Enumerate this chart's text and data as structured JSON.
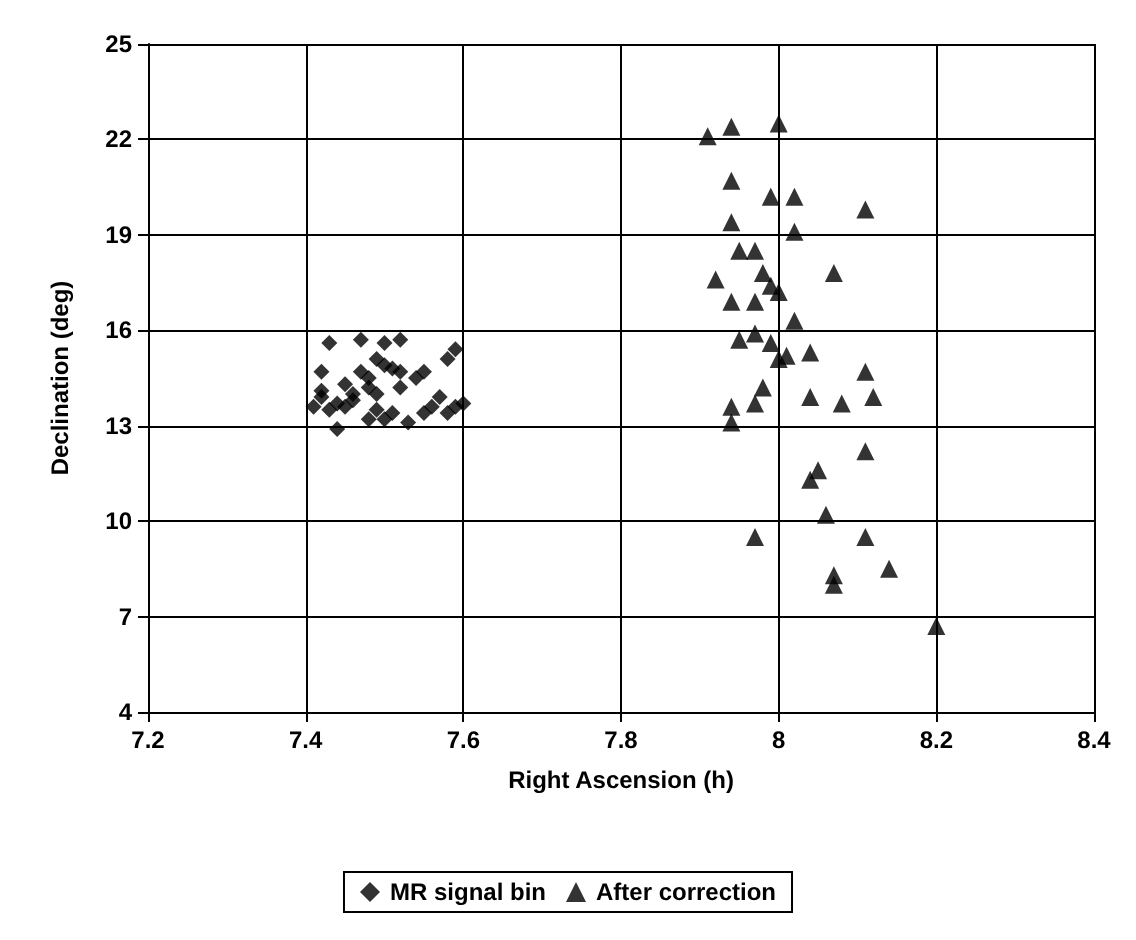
{
  "chart_data": {
    "type": "scatter",
    "xlabel": "Right Ascension (h)",
    "ylabel": "Declination (deg)",
    "xlim": [
      7.2,
      8.4
    ],
    "xticks": [
      7.2,
      7.4,
      7.6,
      7.8,
      8,
      8.2,
      8.4
    ],
    "ylim": [
      4,
      25
    ],
    "yticks": [
      4,
      7,
      10,
      13,
      16,
      19,
      22,
      25
    ],
    "grid": true,
    "legend": "bottom",
    "series": [
      {
        "name": "MR signal bin",
        "color": "#000000",
        "marker": "diamond",
        "x": [
          7.41,
          7.42,
          7.42,
          7.43,
          7.42,
          7.43,
          7.44,
          7.44,
          7.45,
          7.46,
          7.46,
          7.47,
          7.47,
          7.48,
          7.48,
          7.49,
          7.49,
          7.49,
          7.5,
          7.5,
          7.5,
          7.51,
          7.51,
          7.52,
          7.52,
          7.52,
          7.53,
          7.54,
          7.55,
          7.55,
          7.56,
          7.57,
          7.58,
          7.59,
          7.59,
          7.6,
          7.58,
          7.48,
          7.45
        ],
        "values": [
          13.6,
          14.1,
          14.7,
          15.6,
          13.9,
          13.5,
          13.7,
          12.9,
          13.6,
          14,
          13.8,
          15.7,
          14.7,
          14.2,
          14.5,
          14,
          15.1,
          13.5,
          15.6,
          13.2,
          14.9,
          14.8,
          13.4,
          14.7,
          15.7,
          14.2,
          13.1,
          14.5,
          14.7,
          13.4,
          13.6,
          13.9,
          15.1,
          15.4,
          13.6,
          13.7,
          13.4,
          13.2,
          14.3
        ]
      },
      {
        "name": "After correction",
        "color": "#000000",
        "marker": "triangle",
        "x": [
          7.91,
          7.94,
          8,
          7.94,
          7.99,
          8.02,
          8.11,
          7.94,
          8.02,
          7.92,
          7.95,
          7.97,
          7.98,
          8.07,
          7.99,
          8,
          7.94,
          7.97,
          8.02,
          7.95,
          7.97,
          7.99,
          8,
          8.01,
          8.04,
          7.94,
          7.94,
          7.97,
          7.98,
          8.04,
          8.08,
          8.11,
          8.12,
          8.05,
          8.04,
          8.11,
          8.06,
          7.97,
          8.11,
          8.07,
          8.07,
          8.14,
          8.2
        ],
        "values": [
          22.1,
          22.4,
          22.5,
          20.7,
          20.2,
          20.2,
          19.8,
          19.4,
          19.1,
          17.6,
          18.5,
          18.5,
          17.8,
          17.8,
          17.4,
          17.2,
          16.9,
          16.9,
          16.3,
          15.7,
          15.9,
          15.6,
          15.1,
          15.2,
          15.3,
          13.6,
          13.1,
          13.7,
          14.2,
          13.9,
          13.7,
          14.7,
          13.9,
          11.6,
          11.3,
          12.2,
          10.2,
          9.5,
          9.5,
          8.3,
          8,
          8.5,
          6.7
        ]
      }
    ]
  }
}
